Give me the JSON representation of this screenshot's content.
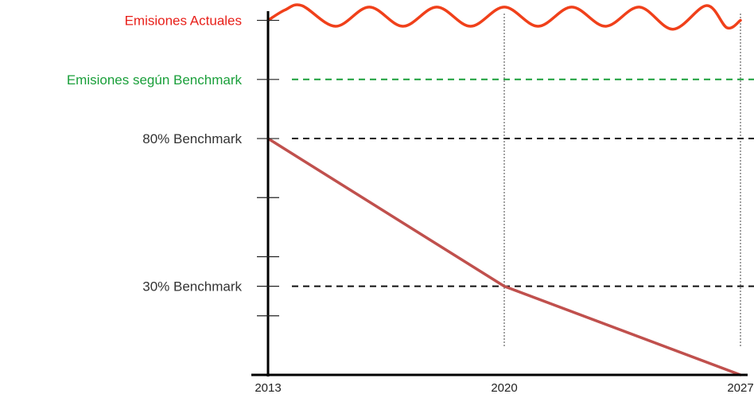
{
  "chart_data": {
    "type": "line",
    "x_ticks": [
      "2013",
      "2020",
      "2027"
    ],
    "xlim": [
      2013,
      2027
    ],
    "ylim": [
      0,
      125
    ],
    "y_labels": [
      {
        "text": "Emisiones Actuales",
        "value": 120,
        "color": "#e8201a"
      },
      {
        "text": "Emisiones según Benchmark",
        "value": 100,
        "color": "#1a9f3a"
      },
      {
        "text": "80% Benchmark",
        "value": 80,
        "color": "#333333"
      },
      {
        "text": "30% Benchmark",
        "value": 30,
        "color": "#333333"
      }
    ],
    "minor_y_ticks": [
      60,
      40,
      20
    ],
    "reference_lines": [
      {
        "value": 100,
        "color": "#1a9f3a",
        "style": "dashed"
      },
      {
        "value": 80,
        "color": "#111111",
        "style": "dashed"
      },
      {
        "value": 30,
        "color": "#111111",
        "style": "dashed"
      }
    ],
    "vertical_guides": [
      2020,
      2027
    ],
    "series": [
      {
        "color": "#f0401a",
        "style": "wavy",
        "x": [
          2013,
          2013.5,
          2014,
          2015,
          2016,
          2017,
          2018,
          2019,
          2020,
          2021,
          2022,
          2023,
          2024,
          2025,
          2026,
          2026.6,
          2027
        ],
        "y": [
          120,
          123.5,
          125,
          118,
          124.5,
          118,
          124.5,
          118,
          124.5,
          118,
          124.5,
          118,
          124.5,
          117,
          125,
          117.5,
          120
        ]
      },
      {
        "color": "#c0504d",
        "style": "solid",
        "x": [
          2013,
          2020,
          2027
        ],
        "y": [
          80,
          30,
          0
        ]
      }
    ],
    "grid": false,
    "legend": "none"
  }
}
